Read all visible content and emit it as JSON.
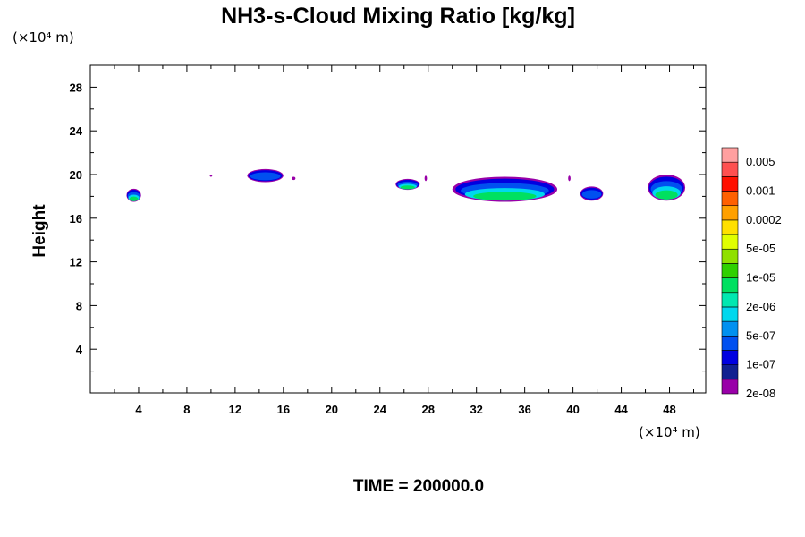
{
  "chart_data": {
    "type": "heatmap",
    "title": "NH3-s-Cloud Mixing Ratio [kg/kg]",
    "ylabel": "Height",
    "x_unit": "(×10⁴ m)",
    "y_unit": "(×10⁴ m)",
    "xlim": [
      0,
      51
    ],
    "ylim": [
      0,
      30
    ],
    "x_ticks": [
      "4",
      "8",
      "12",
      "16",
      "20",
      "24",
      "28",
      "32",
      "36",
      "40",
      "44",
      "48"
    ],
    "y_ticks": [
      "4",
      "8",
      "12",
      "16",
      "20",
      "24",
      "28"
    ],
    "footer": "TIME = 200000.0",
    "colorbar": {
      "labels": [
        "0.005",
        "0.001",
        "0.0002",
        "5e-05",
        "1e-05",
        "2e-06",
        "5e-07",
        "1e-07",
        "2e-08"
      ],
      "colors": [
        "#9900a8",
        "#102090",
        "#0000e0",
        "#0050f0",
        "#0090f0",
        "#00d8ee",
        "#00e8b0",
        "#00e060",
        "#30d000",
        "#90e000",
        "#e0ff00",
        "#ffe000",
        "#ffa000",
        "#ff6000",
        "#ff1000",
        "#ff5050",
        "#ffa0a0"
      ]
    },
    "cloud_patches": [
      {
        "x": [
          3.0,
          4.2
        ],
        "y": [
          17.5,
          18.7
        ],
        "level": "2e-06"
      },
      {
        "x": [
          9.9,
          10.1
        ],
        "y": [
          19.8,
          20.0
        ],
        "level": "2e-08"
      },
      {
        "x": [
          13.0,
          16.0
        ],
        "y": [
          19.3,
          20.5
        ],
        "level": "1e-07"
      },
      {
        "x": [
          16.7,
          17.0
        ],
        "y": [
          19.5,
          19.8
        ],
        "level": "2e-08"
      },
      {
        "x": [
          25.3,
          27.3
        ],
        "y": [
          18.6,
          19.6
        ],
        "level": "5e-07"
      },
      {
        "x": [
          27.7,
          27.9
        ],
        "y": [
          19.4,
          19.9
        ],
        "level": "2e-08"
      },
      {
        "x": [
          30.0,
          38.7
        ],
        "y": [
          17.5,
          19.8
        ],
        "level": "5e-07"
      },
      {
        "x": [
          39.6,
          39.8
        ],
        "y": [
          19.4,
          19.9
        ],
        "level": "2e-08"
      },
      {
        "x": [
          40.6,
          42.5
        ],
        "y": [
          17.6,
          18.9
        ],
        "level": "1e-07"
      },
      {
        "x": [
          46.2,
          49.3
        ],
        "y": [
          17.6,
          20.0
        ],
        "level": "5e-07"
      }
    ]
  }
}
